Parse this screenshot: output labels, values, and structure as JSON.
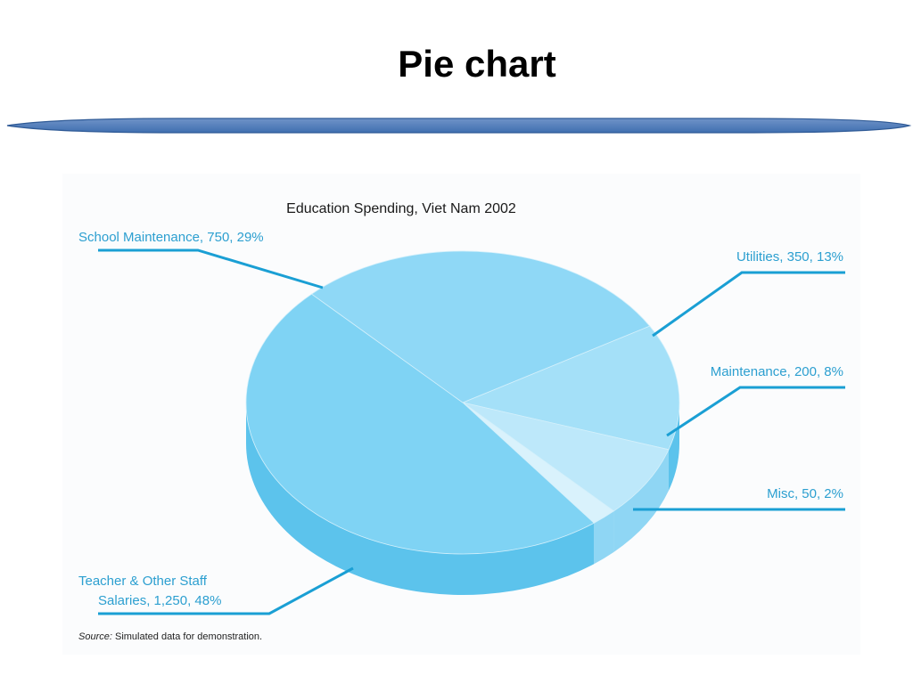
{
  "slide": {
    "title": "Pie chart",
    "divider_color": "#4f81bd"
  },
  "chart_data": {
    "type": "pie",
    "title": "Education Spending, Viet Nam 2002",
    "slices": [
      {
        "label": "Teacher & Other Staff Salaries",
        "value": 1250,
        "percent": 48,
        "color": "#7fd3f4",
        "text": [
          "Teacher & Other Staff",
          "Salaries, 1,250, 48%"
        ]
      },
      {
        "label": "School Maintenance",
        "value": 750,
        "percent": 29,
        "color": "#8fd8f6",
        "text": [
          "School Maintenance, 750, 29%"
        ]
      },
      {
        "label": "Utilities",
        "value": 350,
        "percent": 13,
        "color": "#a4e0f8",
        "text": [
          "Utilities, 350, 13%"
        ]
      },
      {
        "label": "Maintenance",
        "value": 200,
        "percent": 8,
        "color": "#bde8fa",
        "text": [
          "Maintenance, 200, 8%"
        ]
      },
      {
        "label": "Misc",
        "value": 50,
        "percent": 2,
        "color": "#d9f2fc",
        "text": [
          "Misc, 50, 2%"
        ]
      }
    ],
    "source_prefix": "Source:",
    "source_text": " Simulated data for demonstration.",
    "label_color": "#2c9fd0",
    "leader_color": "#1a9fd4",
    "side_color": "#5cc3ec"
  }
}
